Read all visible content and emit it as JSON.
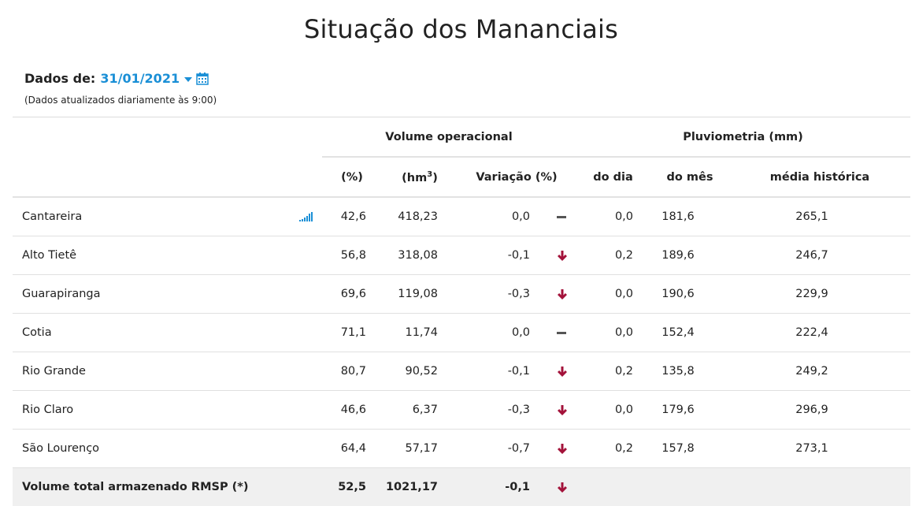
{
  "page_title": "Situação dos Mananciais",
  "date_filter": {
    "label": "Dados de:",
    "value": "31/01/2021",
    "note": "(Dados atualizados diariamente às 9:00)"
  },
  "table": {
    "group_headers": {
      "volume": "Volume operacional",
      "pluvio": "Pluviometria (mm)"
    },
    "columns": {
      "pct": "(%)",
      "hm3_prefix": "(hm",
      "hm3_sup": "3",
      "hm3_suffix": ")",
      "variation": "Variação (%)",
      "day": "do dia",
      "month": "do mês",
      "hist": "média histórica"
    },
    "rows": [
      {
        "name": "Cantareira",
        "pct": "42,6",
        "hm3": "418,23",
        "var": "0,0",
        "trend": "stable",
        "day": "0,0",
        "month": "181,6",
        "hist": "265,1"
      },
      {
        "name": "Alto Tietê",
        "pct": "56,8",
        "hm3": "318,08",
        "var": "-0,1",
        "trend": "down",
        "day": "0,2",
        "month": "189,6",
        "hist": "246,7"
      },
      {
        "name": "Guarapiranga",
        "pct": "69,6",
        "hm3": "119,08",
        "var": "-0,3",
        "trend": "down",
        "day": "0,0",
        "month": "190,6",
        "hist": "229,9"
      },
      {
        "name": "Cotia",
        "pct": "71,1",
        "hm3": "11,74",
        "var": "0,0",
        "trend": "stable",
        "day": "0,0",
        "month": "152,4",
        "hist": "222,4"
      },
      {
        "name": "Rio Grande",
        "pct": "80,7",
        "hm3": "90,52",
        "var": "-0,1",
        "trend": "down",
        "day": "0,2",
        "month": "135,8",
        "hist": "249,2"
      },
      {
        "name": "Rio Claro",
        "pct": "46,6",
        "hm3": "6,37",
        "var": "-0,3",
        "trend": "down",
        "day": "0,0",
        "month": "179,6",
        "hist": "296,9"
      },
      {
        "name": "São Lourenço",
        "pct": "64,4",
        "hm3": "57,17",
        "var": "-0,7",
        "trend": "down",
        "day": "0,2",
        "month": "157,8",
        "hist": "273,1"
      }
    ],
    "total": {
      "name": "Volume total armazenado RMSP (*)",
      "pct": "52,5",
      "hm3": "1021,17",
      "var": "-0,1",
      "trend": "down"
    }
  },
  "colors": {
    "accent": "#1a8fd6",
    "down_arrow": "#a3123a",
    "stable": "#555555"
  },
  "icons": {
    "date": "calendar-icon",
    "dropdown": "caret-down-icon",
    "chart": "signal-bars-icon",
    "down": "arrow-down-icon",
    "stable": "dash-icon"
  }
}
